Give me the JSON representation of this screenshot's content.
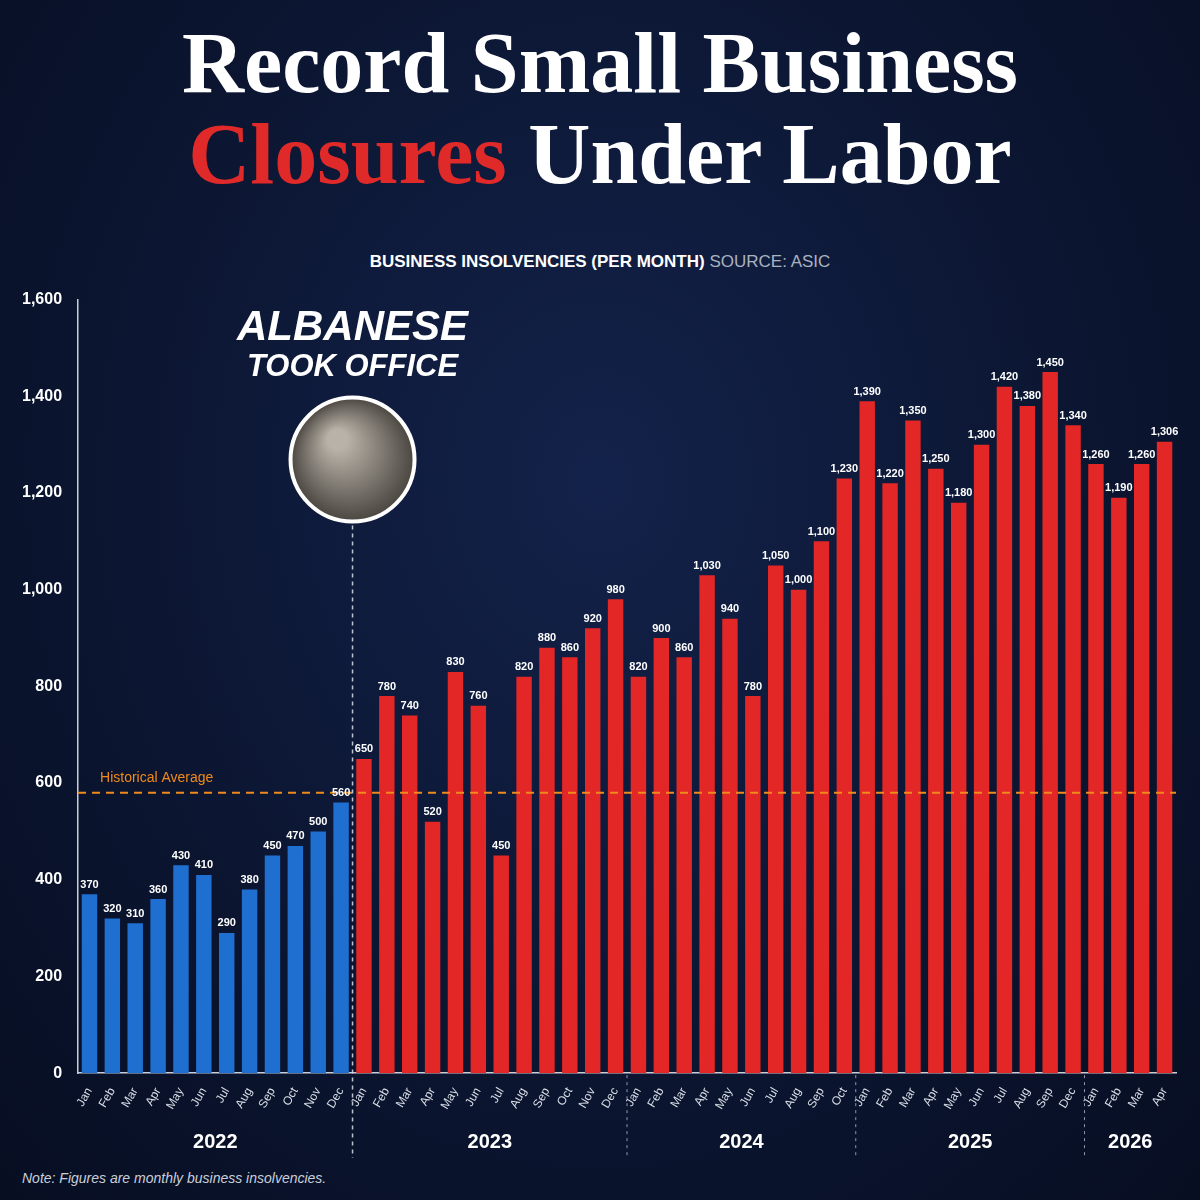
{
  "chart_data": {
    "type": "bar",
    "title": "Record Small Business Closures Under Labor",
    "title_highlight": "Closures",
    "subtitle": "BUSINESS INSOLVENCIES (PER MONTH)",
    "source": "SOURCE: ASIC",
    "note": "Note: Figures are monthly business insolvencies.",
    "categories": [
      "Jan",
      "Feb",
      "Mar",
      "Apr",
      "May",
      "Jun",
      "Jul",
      "Aug",
      "Sep",
      "Oct",
      "Nov",
      "Dec",
      "Jan",
      "Feb",
      "Mar",
      "Apr",
      "May",
      "Jun",
      "Jul",
      "Aug",
      "Sep",
      "Oct",
      "Nov",
      "Dec",
      "Jan",
      "Feb",
      "Mar",
      "Apr",
      "May",
      "Jun",
      "Jul",
      "Aug",
      "Sep",
      "Oct",
      "Jan",
      "Feb",
      "Mar",
      "Apr",
      "May",
      "Jun",
      "Jul",
      "Aug",
      "Sep",
      "Dec",
      "Jan",
      "Feb",
      "Mar",
      "Apr"
    ],
    "values": [
      370,
      320,
      310,
      360,
      430,
      410,
      290,
      380,
      450,
      470,
      500,
      560,
      650,
      780,
      740,
      520,
      830,
      760,
      450,
      820,
      880,
      860,
      920,
      980,
      820,
      900,
      860,
      1030,
      940,
      780,
      1050,
      1000,
      1100,
      1230,
      1390,
      1220,
      1350,
      1250,
      1180,
      1300,
      1420,
      1380,
      1450,
      1340,
      1260,
      1190,
      1260,
      1306
    ],
    "value_labels": [
      "370",
      "320",
      "310",
      "360",
      "430",
      "410",
      "290",
      "380",
      "450",
      "470",
      "500",
      "560",
      "650",
      "780",
      "740",
      "520",
      "830",
      "760",
      "450",
      "820",
      "880",
      "860",
      "920",
      "980",
      "820",
      "900",
      "860",
      "1,030",
      "940",
      "780",
      "1,050",
      "1,000",
      "1,100",
      "1,230",
      "1,390",
      "1,220",
      "1,350",
      "1,250",
      "1,180",
      "1,300",
      "1,420",
      "1,380",
      "1,450",
      "1,340",
      "1,260",
      "1,190",
      "1,260",
      "1,306"
    ],
    "colors": [
      "#1f6fd1",
      "#1f6fd1",
      "#1f6fd1",
      "#1f6fd1",
      "#1f6fd1",
      "#1f6fd1",
      "#1f6fd1",
      "#1f6fd1",
      "#1f6fd1",
      "#1f6fd1",
      "#1f6fd1",
      "#1f6fd1",
      "#e32626",
      "#e32626",
      "#e32626",
      "#e32626",
      "#e32626",
      "#e32626",
      "#e32626",
      "#e32626",
      "#e32626",
      "#e32626",
      "#e32626",
      "#e32626",
      "#e32626",
      "#e32626",
      "#e32626",
      "#e32626",
      "#e32626",
      "#e32626",
      "#e32626",
      "#e32626",
      "#e32626",
      "#e32626",
      "#e32626",
      "#e32626",
      "#e32626",
      "#e32626",
      "#e32626",
      "#e32626",
      "#e32626",
      "#e32626",
      "#e32626",
      "#e32626",
      "#e32626",
      "#e32626",
      "#e32626",
      "#e32626"
    ],
    "x_groups": [
      {
        "label": "2022",
        "size": 12
      },
      {
        "label": "2023",
        "size": 12
      },
      {
        "label": "2024",
        "size": 10
      },
      {
        "label": "2025",
        "size": 10
      },
      {
        "label": "2026",
        "size": 4
      }
    ],
    "reference_line": {
      "label": "Historical Average",
      "value": 580
    },
    "office_marker": {
      "text": [
        "ALBANESE",
        "TOOK OFFICE"
      ],
      "at_group": "2023"
    },
    "ylim": [
      0,
      1600
    ],
    "yticks": [
      0,
      200,
      400,
      600,
      800,
      {
        "value": 1000,
        "label": "1,000"
      },
      {
        "value": 1200,
        "label": "1,200"
      },
      {
        "value": 1400,
        "label": "1,400"
      },
      {
        "value": 1600,
        "label": "1,600"
      }
    ],
    "grid": false,
    "data_labels": true
  }
}
